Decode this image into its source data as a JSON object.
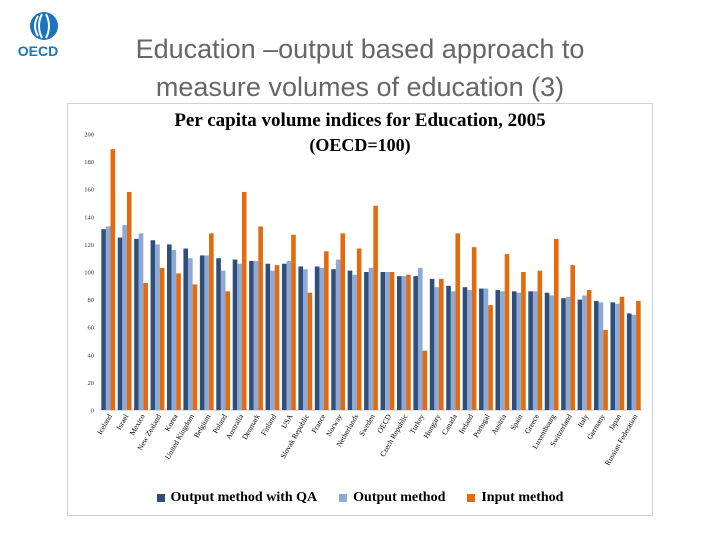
{
  "slide": {
    "title_line1": "Education –output based approach to",
    "title_line2": "measure volumes of education (3)",
    "logo_text": "OECD"
  },
  "colors": {
    "qa": "#2f4f7a",
    "output": "#8ea9d4",
    "input": "#e26b10",
    "logo_blue": "#1b75bb"
  },
  "chart_data": {
    "type": "bar",
    "title": "Per capita volume indices for Education, 2005",
    "subtitle": "(OECD=100)",
    "ylim": [
      0,
      200
    ],
    "yticks": [
      0,
      20,
      40,
      60,
      80,
      100,
      120,
      140,
      160,
      180,
      200
    ],
    "grid": false,
    "legend_position": "bottom",
    "categories": [
      "Iceland",
      "Israel",
      "Mexico",
      "New Zealand",
      "Korea",
      "United Kingdom",
      "Belgium",
      "Poland",
      "Australia",
      "Denmark",
      "Finland",
      "USA",
      "Slovak Republic",
      "France",
      "Norway",
      "Netherlands",
      "Sweden",
      "OECD",
      "Czech Republic",
      "Turkey",
      "Hungary",
      "Canada",
      "Ireland",
      "Portugal",
      "Austria",
      "Spain",
      "Greece",
      "Luxembourg",
      "Switzerland",
      "Italy",
      "Germany",
      "Japan",
      "Russian Federation"
    ],
    "series": [
      {
        "name": "Output method with QA",
        "values": [
          131,
          125,
          124,
          123,
          120,
          117,
          112,
          110,
          109,
          108,
          106,
          106,
          104,
          104,
          102,
          101,
          100,
          100,
          97,
          97,
          95,
          90,
          89,
          88,
          87,
          86,
          86,
          85,
          81,
          80,
          79,
          78,
          70
        ]
      },
      {
        "name": "Output method",
        "values": [
          133,
          134,
          128,
          120,
          116,
          110,
          112,
          101,
          106,
          108,
          101,
          108,
          102,
          103,
          109,
          98,
          103,
          100,
          97,
          103,
          89,
          86,
          87,
          88,
          86,
          85,
          86,
          83,
          82,
          83,
          78,
          77,
          69
        ]
      },
      {
        "name": "Input method",
        "values": [
          189,
          158,
          92,
          103,
          99,
          91,
          128,
          86,
          158,
          133,
          105,
          127,
          85,
          115,
          128,
          117,
          148,
          100,
          98,
          43,
          95,
          128,
          118,
          76,
          113,
          100,
          101,
          124,
          105,
          87,
          58,
          82,
          79
        ]
      }
    ]
  }
}
